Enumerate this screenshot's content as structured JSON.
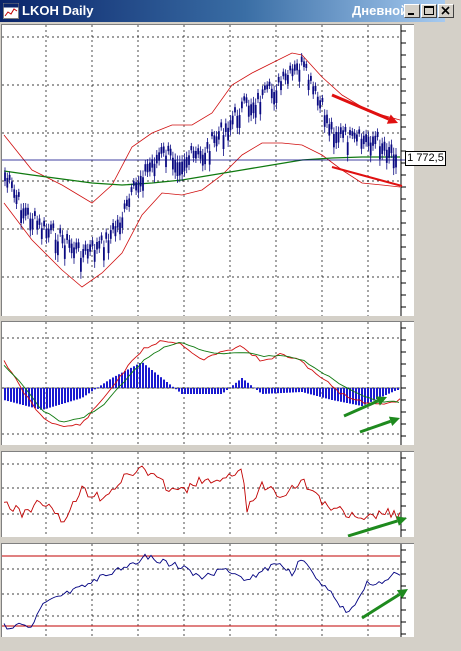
{
  "window": {
    "title": "LKOH Daily",
    "title_right": "Дневной",
    "minimize_icon": "minimize-icon",
    "maximize_icon": "maximize-icon",
    "close_icon": "close-icon"
  },
  "price_label": "1 772,5",
  "colors": {
    "candles": "#0a0a82",
    "bollinger": "#d01010",
    "moving_average": "#107a10",
    "macd_histogram": "#1a1ad0",
    "annotation_red": "#e01010",
    "annotation_green": "#1e8a1e",
    "oscillator_red": "#c00000",
    "oscillator_blue": "#000080"
  },
  "annotations": [
    {
      "pane": "price",
      "icon": "arrow-icon",
      "color": "red"
    },
    {
      "pane": "price",
      "icon": "trendline",
      "color": "red"
    },
    {
      "pane": "macd",
      "icon": "arrow-icon",
      "color": "green"
    },
    {
      "pane": "macd",
      "icon": "arrow-icon",
      "color": "green"
    },
    {
      "pane": "oscillator-1",
      "icon": "arrow-icon",
      "color": "green"
    },
    {
      "pane": "oscillator-2",
      "icon": "arrow-icon",
      "color": "green"
    }
  ]
}
